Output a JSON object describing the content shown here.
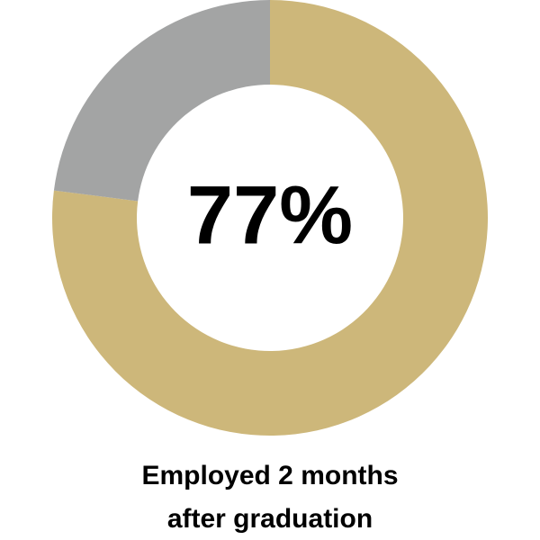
{
  "chart_data": {
    "type": "donut",
    "values": [
      77,
      23
    ],
    "value_labels": [
      "77%",
      null
    ],
    "colors": [
      "#cdb77a",
      "#a3a4a4"
    ],
    "caption": [
      "Employed 2 months",
      "after graduation"
    ]
  }
}
